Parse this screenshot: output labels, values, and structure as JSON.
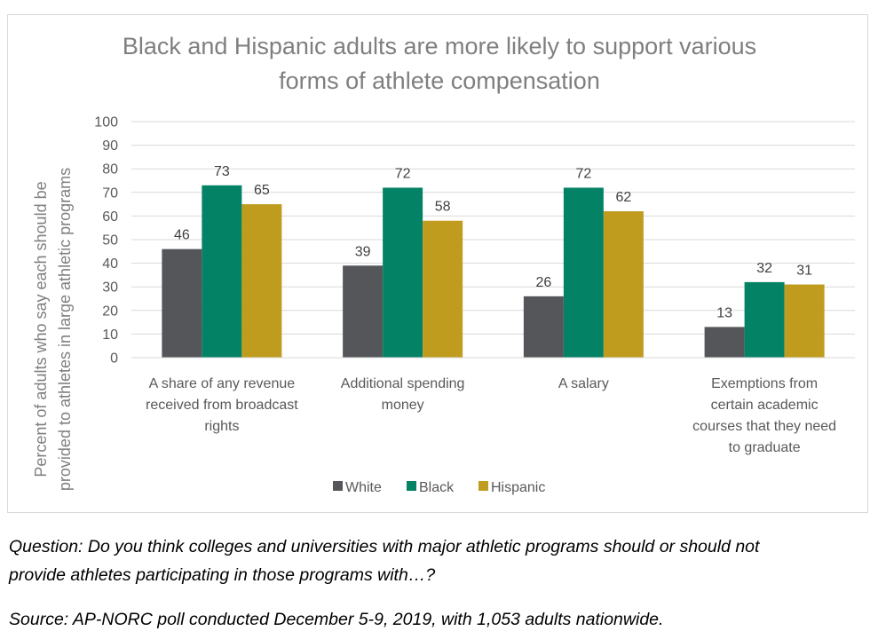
{
  "chart_data": {
    "type": "bar",
    "title": "Black and Hispanic adults are more likely to support various forms of athlete compensation",
    "title_lines": [
      "Black and Hispanic adults are more likely to support various",
      "forms of athlete compensation"
    ],
    "ylabel": "Percent of adults who say each should be provided to athletes in large athletic programs",
    "ylabel_lines": [
      "Percent of adults who say each should be",
      "provided to athletes in large athletic programs"
    ],
    "xlabel": "",
    "ylim": [
      0,
      100
    ],
    "yticks": [
      0,
      10,
      20,
      30,
      40,
      50,
      60,
      70,
      80,
      90,
      100
    ],
    "grid": true,
    "legend_position": "bottom",
    "categories": [
      "A share of any revenue received from broadcast rights",
      "Additional spending money",
      "A salary",
      "Exemptions from certain academic courses that they need to graduate"
    ],
    "category_lines": [
      [
        "A share of any revenue",
        "received from broadcast",
        "rights"
      ],
      [
        "Additional spending",
        "money"
      ],
      [
        "A salary"
      ],
      [
        "Exemptions from",
        "certain academic",
        "courses that they need",
        "to graduate"
      ]
    ],
    "series": [
      {
        "name": "White",
        "color": "#55565a",
        "values": [
          46,
          39,
          26,
          13
        ]
      },
      {
        "name": "Black",
        "color": "#048266",
        "values": [
          73,
          72,
          72,
          32
        ]
      },
      {
        "name": "Hispanic",
        "color": "#bf9b1e",
        "values": [
          65,
          58,
          62,
          31
        ]
      }
    ]
  },
  "notes": {
    "question_line1": "Question: Do you think colleges and universities with major athletic programs should or should not",
    "question_line2": "provide athletes participating in those programs with…?",
    "source": "Source: AP-NORC poll conducted December 5-9, 2019, with 1,053 adults nationwide."
  }
}
